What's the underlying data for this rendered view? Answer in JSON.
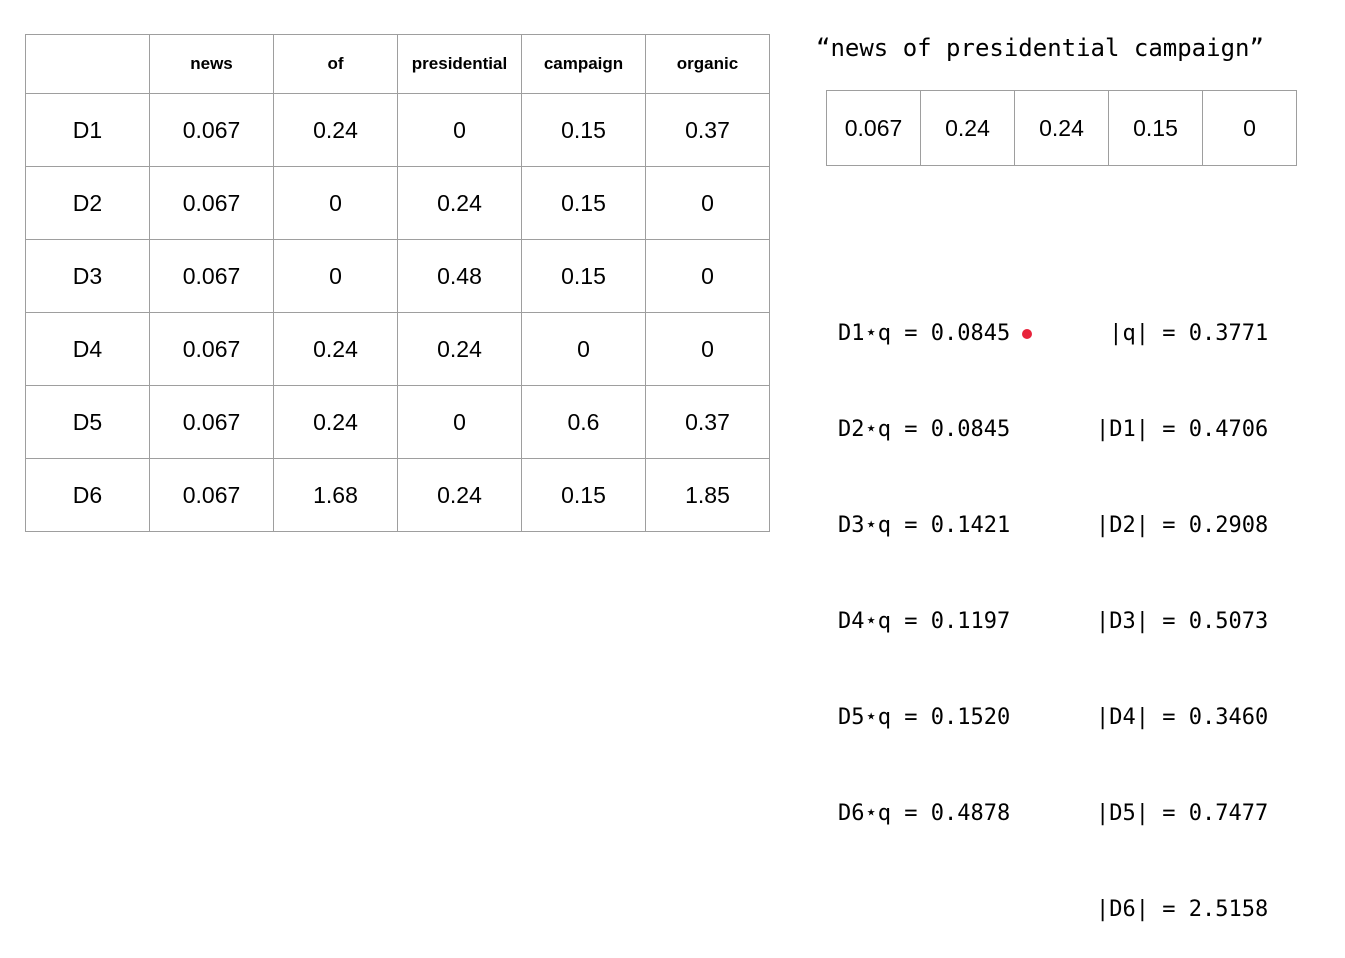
{
  "table": {
    "columns": [
      "",
      "news",
      "of",
      "presidential",
      "campaign",
      "organic"
    ],
    "rows": [
      [
        "D1",
        "0.067",
        "0.24",
        "0",
        "0.15",
        "0.37"
      ],
      [
        "D2",
        "0.067",
        "0",
        "0.24",
        "0.15",
        "0"
      ],
      [
        "D3",
        "0.067",
        "0",
        "0.48",
        "0.15",
        "0"
      ],
      [
        "D4",
        "0.067",
        "0.24",
        "0.24",
        "0",
        "0"
      ],
      [
        "D5",
        "0.067",
        "0.24",
        "0",
        "0.6",
        "0.37"
      ],
      [
        "D6",
        "0.067",
        "1.68",
        "0.24",
        "0.15",
        "1.85"
      ]
    ]
  },
  "query": {
    "text": "“news of presidential campaign”",
    "vector": [
      "0.067",
      "0.24",
      "0.24",
      "0.15",
      "0"
    ]
  },
  "dot_products": [
    "D1⋆q = 0.0845",
    "D2⋆q = 0.0845",
    "D3⋆q = 0.1421",
    "D4⋆q = 0.1197",
    "D5⋆q = 0.1520",
    "D6⋆q = 0.4878"
  ],
  "norms": [
    " |q| = 0.3771",
    "|D1| = 0.4706",
    "|D2| = 0.2908",
    "|D3| = 0.5073",
    "|D4| = 0.3460",
    "|D5| = 0.7477",
    "|D6| = 2.5158"
  ]
}
